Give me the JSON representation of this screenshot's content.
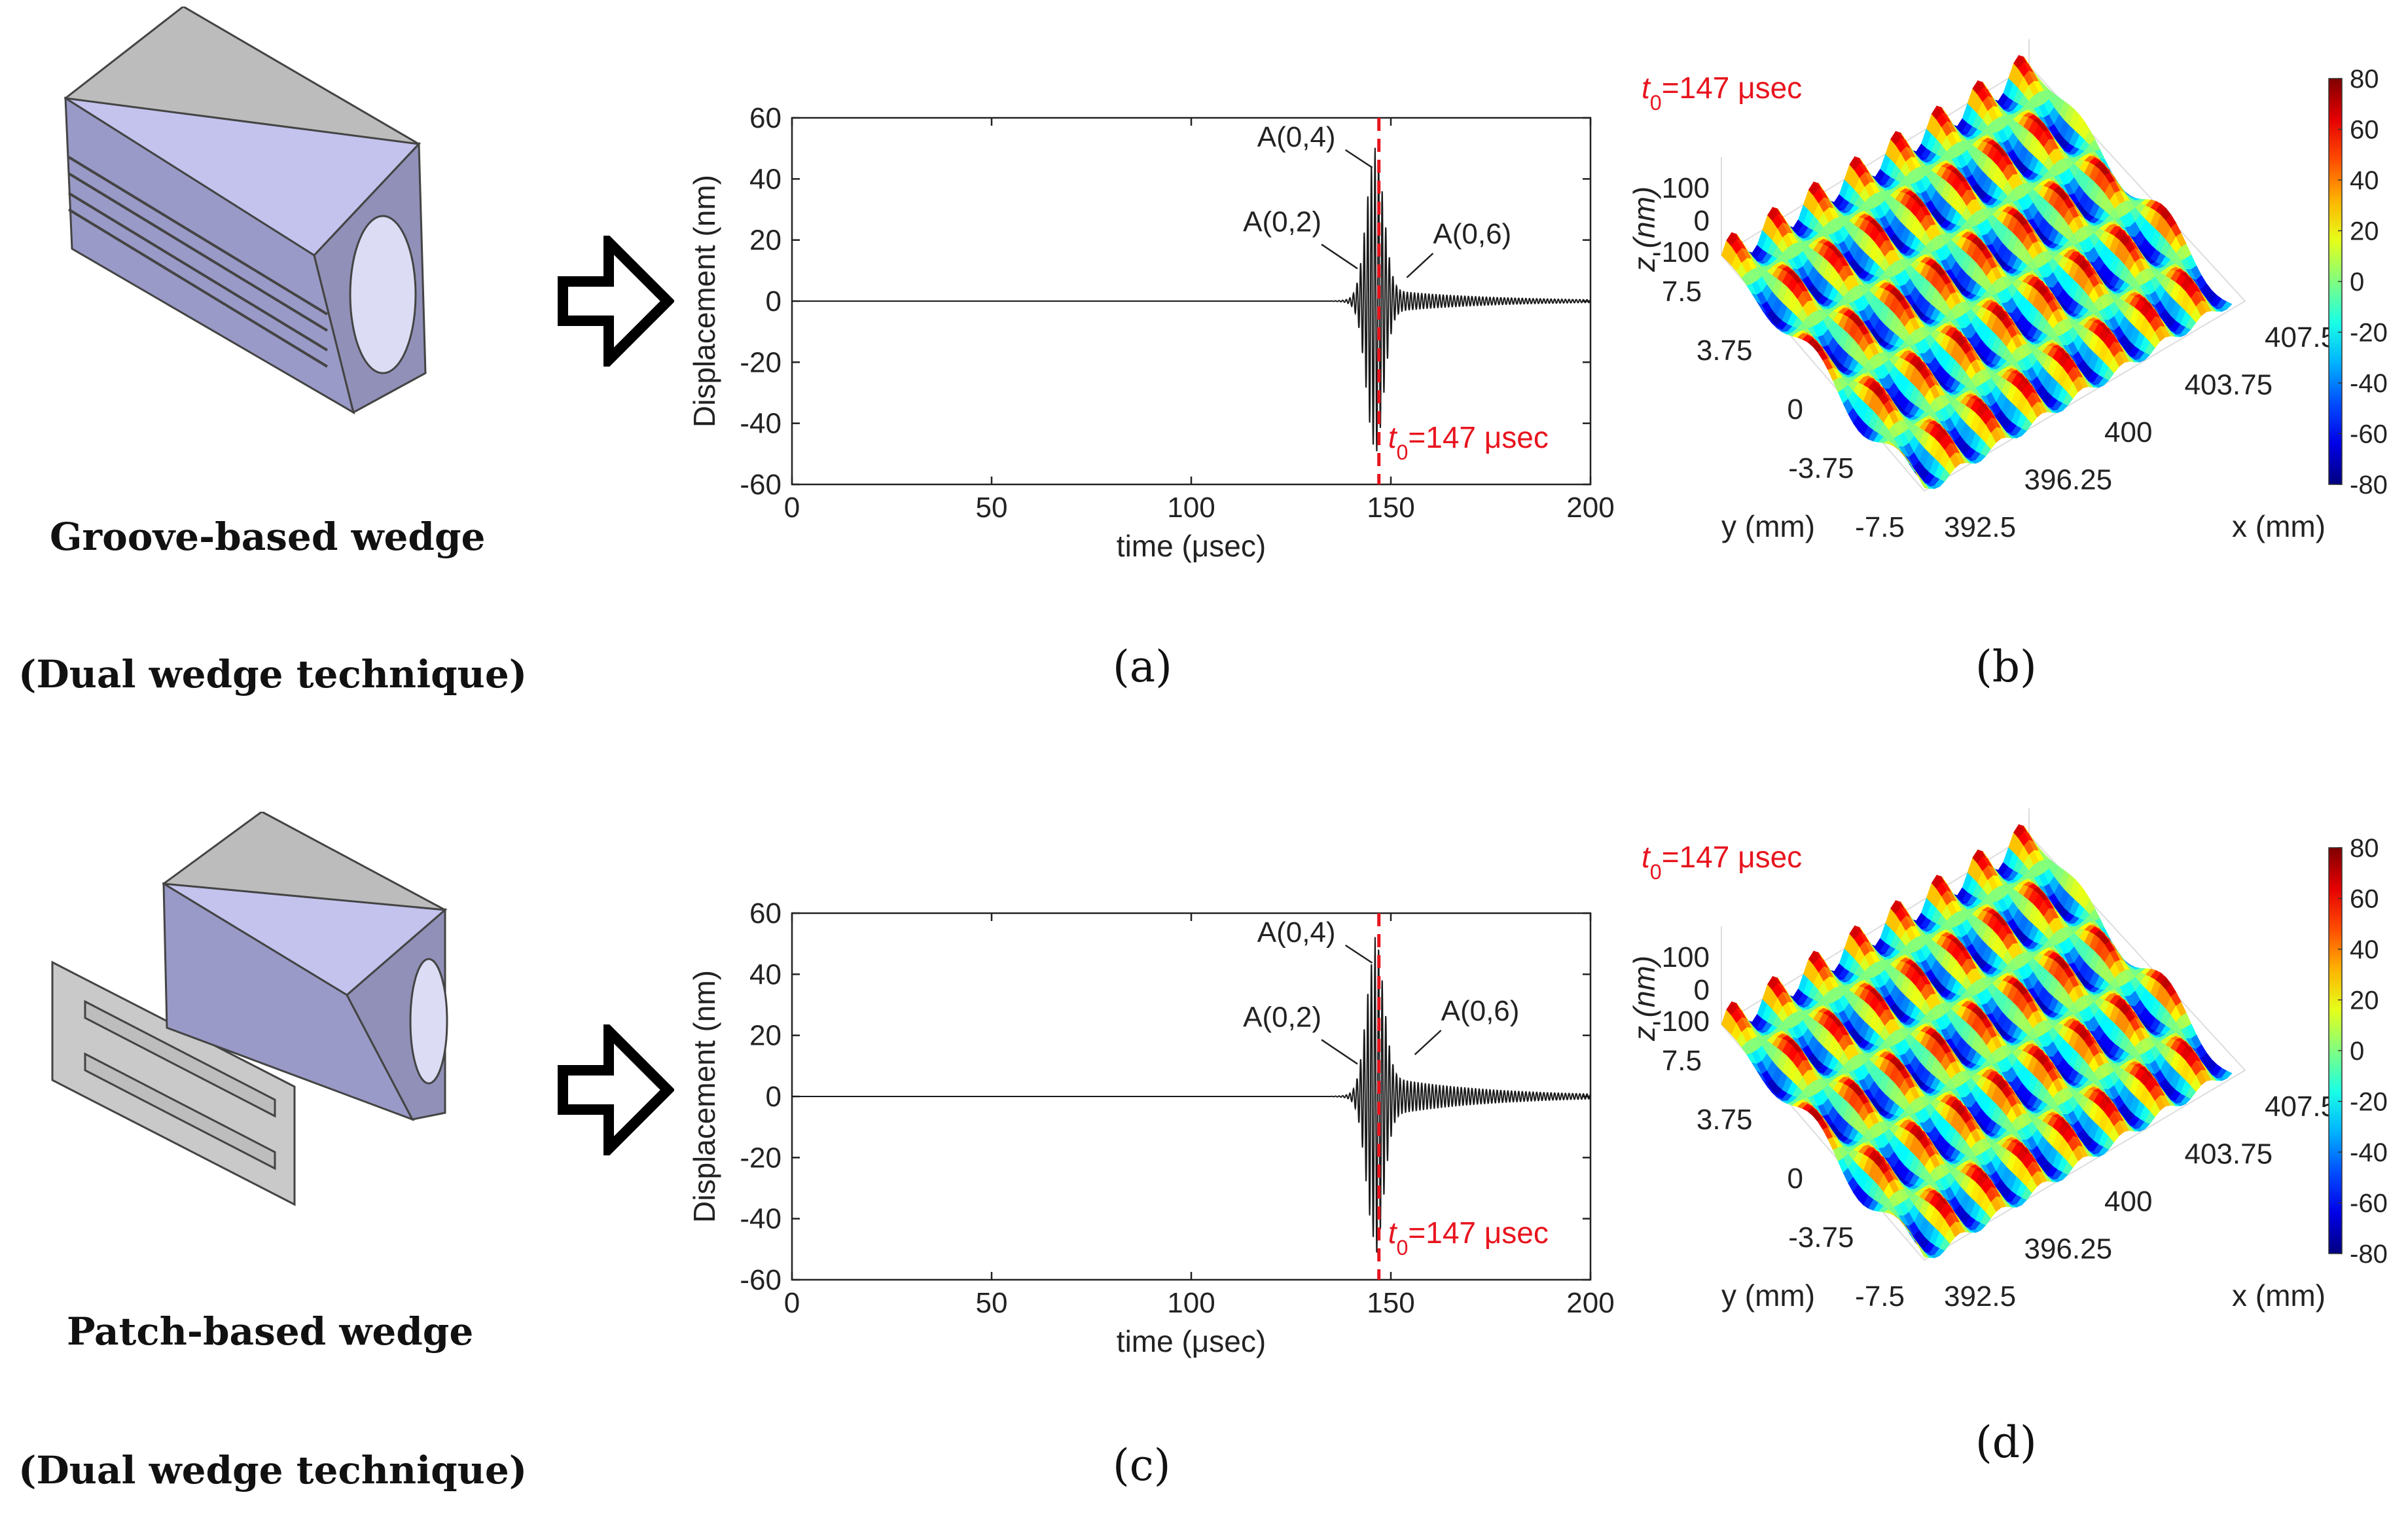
{
  "captions": {
    "top_wedge": "Groove-based wedge",
    "top_technique": "(Dual wedge technique)",
    "bottom_wedge": "Patch-based wedge",
    "bottom_technique": "(Dual wedge technique)"
  },
  "panel_labels": {
    "a": "(a)",
    "b": "(b)",
    "c": "(c)",
    "d": "(d)"
  },
  "colors": {
    "signal": "#1a1a1a",
    "marker": "#e8141e",
    "wedge_top": "#bcbcbc",
    "wedge_face": "#c3c3ee",
    "wedge_side": "#9a9ac8",
    "patch": "#c9c9c9"
  },
  "chart_data": [
    {
      "type": "line",
      "panel": "(a)",
      "title": "",
      "xlabel": "time (μsec)",
      "ylabel": "Displacement (nm)",
      "xlim": [
        0,
        200
      ],
      "ylim": [
        -60,
        60
      ],
      "xticks": [
        0,
        50,
        100,
        150,
        200
      ],
      "yticks": [
        -60,
        -40,
        -20,
        0,
        20,
        40,
        60
      ],
      "marker_time": 147,
      "marker_label": "t0=147 μsec",
      "series": [
        {
          "name": "displacement",
          "burst_center": 146,
          "peak": 47,
          "tail_amplitude": 4
        }
      ],
      "annotations": [
        {
          "text": "A(0,4)",
          "x": 146,
          "y": 42
        },
        {
          "text": "A(0,2)",
          "x": 140,
          "y": 10
        },
        {
          "text": "A(0,6)",
          "x": 154,
          "y": 6
        }
      ]
    },
    {
      "type": "line",
      "panel": "(c)",
      "title": "",
      "xlabel": "time (μsec)",
      "ylabel": "Displacement (nm)",
      "xlim": [
        0,
        200
      ],
      "ylim": [
        -60,
        60
      ],
      "xticks": [
        0,
        50,
        100,
        150,
        200
      ],
      "yticks": [
        -60,
        -40,
        -20,
        0,
        20,
        40,
        60
      ],
      "marker_time": 147,
      "marker_label": "t0=147 μsec",
      "series": [
        {
          "name": "displacement",
          "burst_center": 146,
          "peak": 46,
          "tail_amplitude": 7
        }
      ],
      "annotations": [
        {
          "text": "A(0,4)",
          "x": 146,
          "y": 42
        },
        {
          "text": "A(0,2)",
          "x": 140,
          "y": 10
        },
        {
          "text": "A(0,6)",
          "x": 156,
          "y": 12
        }
      ]
    },
    {
      "type": "heatmap",
      "panel": "(b)",
      "title": "t0=147 μsec",
      "xlabel": "x (mm)",
      "ylabel": "y (mm)",
      "zlabel": "z (nm)",
      "xticks": [
        "392.5",
        "396.25",
        "400",
        "403.75",
        "407.5"
      ],
      "yticks": [
        "-7.5",
        "-3.75",
        "0",
        "3.75",
        "7.5"
      ],
      "zticks": [
        "-100",
        "0",
        "100"
      ],
      "colorbar_ticks": [
        "80",
        "60",
        "40",
        "20",
        "0",
        "-20",
        "-40",
        "-60",
        "-80"
      ],
      "clim": [
        -80,
        80
      ]
    },
    {
      "type": "heatmap",
      "panel": "(d)",
      "title": "t0=147 μsec",
      "xlabel": "x (mm)",
      "ylabel": "y (mm)",
      "zlabel": "z (nm)",
      "xticks": [
        "392.5",
        "396.25",
        "400",
        "403.75",
        "407.5"
      ],
      "yticks": [
        "-7.5",
        "-3.75",
        "0",
        "3.75",
        "7.5"
      ],
      "zticks": [
        "-100",
        "0",
        "100"
      ],
      "colorbar_ticks": [
        "80",
        "60",
        "40",
        "20",
        "0",
        "-20",
        "-40",
        "-60",
        "-80"
      ],
      "clim": [
        -80,
        80
      ]
    }
  ]
}
